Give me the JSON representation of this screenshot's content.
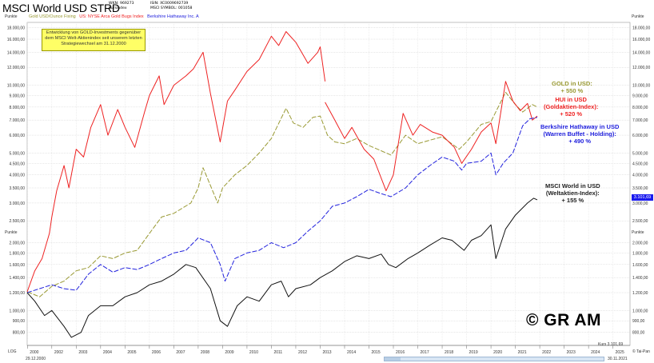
{
  "header": {
    "title": "MSCI World USD STRD",
    "wkn_label": "WKN:",
    "wkn": "969273",
    "isin_label": "ISIN:",
    "isin": "XC0009692739",
    "kursindex": "Kursindex",
    "msci": "MSCI",
    "symbol_label": "SYMBOL:",
    "symbol": "001058"
  },
  "legend": [
    {
      "label": "Gold USD/Ounce Fixing",
      "color": "#999933"
    },
    {
      "label": "US: NYSE Arca Gold Bugs Index",
      "color": "#ee2222"
    },
    {
      "label": "Berkshire Hathaway Inc. A",
      "color": "#2222dd"
    }
  ],
  "note": "Entwicklung von GOLD-Investments gegenüber dem MSCI Welt-Aktienindex seit unserem letzten Strategiewechsel am 31.12.2000",
  "annotations": {
    "gold": [
      "GOLD in USD:",
      "+ 550 %"
    ],
    "hui": [
      "HUI in USD",
      "(Goldaktien-Index):",
      "+ 520 %"
    ],
    "brk": [
      "Berkshire Hathaway in USD",
      "(Warren Buffet - Holding):",
      "+ 490 %"
    ],
    "msci": [
      "MSCI World in USD",
      "(Weltaktien-Index):",
      "+ 155 %"
    ]
  },
  "watermark": "© GR AM",
  "price_tag": "3.101,69",
  "kurs_text": "Kurs 3.101,69",
  "axis": {
    "unit_label": "Punkte",
    "log_label": "LOG",
    "footer_right": "© Tai-Pan",
    "date_start": "29.12.2000",
    "date_end": "30.11.2021"
  },
  "chart_data": {
    "type": "line",
    "scale": "log",
    "ylim": [
      700,
      19000
    ],
    "y_ticks": [
      800,
      900,
      1000,
      1200,
      1400,
      1600,
      1800,
      2000,
      2500,
      3000,
      3500,
      4000,
      4500,
      5000,
      6000,
      7000,
      8000,
      9000,
      10000,
      12000,
      14000,
      16000,
      18000
    ],
    "y_tick_labels": [
      "800,00",
      "900,00",
      "1.000,00",
      "1.200,00",
      "1.400,00",
      "1.600,00",
      "1.800,00",
      "2.000,00",
      "2.500,00",
      "3.000,00",
      "3.500,00",
      "4.000,00",
      "4.500,00",
      "5.000,00",
      "6.000,00",
      "7.000,00",
      "8.000,00",
      "9.000,00",
      "10.000,00",
      "12.000,00",
      "14.000,00",
      "16.000,00",
      "18.000,00"
    ],
    "xlim": [
      2000.99,
      2025.7
    ],
    "x_tick_labels": [
      "2000",
      "2002",
      "2003",
      "2004",
      "2005",
      "2006",
      "2007",
      "2008",
      "2009",
      "2010",
      "2011",
      "2012",
      "2013",
      "2014",
      "2015",
      "2016",
      "2017",
      "2018",
      "2019",
      "2020",
      "2021",
      "2022",
      "2023",
      "2024",
      "2025"
    ],
    "series": [
      {
        "name": "Gold USD/Ounce Fixing",
        "color": "#999933",
        "style": "dashed",
        "points": [
          [
            2001.0,
            1210
          ],
          [
            2001.5,
            1150
          ],
          [
            2002.0,
            1280
          ],
          [
            2002.5,
            1350
          ],
          [
            2003.0,
            1500
          ],
          [
            2003.5,
            1550
          ],
          [
            2004.0,
            1750
          ],
          [
            2004.5,
            1700
          ],
          [
            2005.0,
            1800
          ],
          [
            2005.5,
            1850
          ],
          [
            2006.0,
            2200
          ],
          [
            2006.5,
            2600
          ],
          [
            2007.0,
            2700
          ],
          [
            2007.7,
            3000
          ],
          [
            2008.0,
            3500
          ],
          [
            2008.2,
            4300
          ],
          [
            2008.8,
            3000
          ],
          [
            2009.0,
            3500
          ],
          [
            2009.5,
            4000
          ],
          [
            2010.0,
            4400
          ],
          [
            2010.5,
            5000
          ],
          [
            2011.0,
            5800
          ],
          [
            2011.6,
            7900
          ],
          [
            2011.9,
            6800
          ],
          [
            2012.3,
            6500
          ],
          [
            2012.7,
            7200
          ],
          [
            2013.0,
            7300
          ],
          [
            2013.3,
            6000
          ],
          [
            2013.6,
            5600
          ],
          [
            2014.0,
            5500
          ],
          [
            2014.5,
            5800
          ],
          [
            2015.0,
            5400
          ],
          [
            2015.9,
            4900
          ],
          [
            2016.5,
            6000
          ],
          [
            2017.0,
            5500
          ],
          [
            2017.5,
            5700
          ],
          [
            2018.0,
            5900
          ],
          [
            2018.7,
            5200
          ],
          [
            2019.0,
            5600
          ],
          [
            2019.6,
            6700
          ],
          [
            2020.0,
            6900
          ],
          [
            2020.6,
            9300
          ],
          [
            2021.0,
            8200
          ],
          [
            2021.3,
            7600
          ],
          [
            2021.7,
            8200
          ],
          [
            2021.9,
            8000
          ]
        ]
      },
      {
        "name": "US: NYSE Arca Gold Bugs Index",
        "color": "#ee2222",
        "style": "solid",
        "points": [
          [
            2000.99,
            1210
          ],
          [
            2001.3,
            1500
          ],
          [
            2001.6,
            1700
          ],
          [
            2001.9,
            2200
          ],
          [
            2002.0,
            2600
          ],
          [
            2002.2,
            3400
          ],
          [
            2002.5,
            4400
          ],
          [
            2002.7,
            3500
          ],
          [
            2003.0,
            5200
          ],
          [
            2003.3,
            4800
          ],
          [
            2003.6,
            6500
          ],
          [
            2004.0,
            8200
          ],
          [
            2004.3,
            6000
          ],
          [
            2004.7,
            7800
          ],
          [
            2005.0,
            6500
          ],
          [
            2005.4,
            5300
          ],
          [
            2005.8,
            7600
          ],
          [
            2006.0,
            9000
          ],
          [
            2006.4,
            11000
          ],
          [
            2006.6,
            8200
          ],
          [
            2007.0,
            10000
          ],
          [
            2007.5,
            11000
          ],
          [
            2007.8,
            11800
          ],
          [
            2008.2,
            14000
          ],
          [
            2008.5,
            9200
          ],
          [
            2008.9,
            5600
          ],
          [
            2009.2,
            8500
          ],
          [
            2009.5,
            9500
          ],
          [
            2010.0,
            11500
          ],
          [
            2010.5,
            13000
          ],
          [
            2011.0,
            16500
          ],
          [
            2011.3,
            15000
          ],
          [
            2011.6,
            17300
          ],
          [
            2012.0,
            15500
          ],
          [
            2012.5,
            12500
          ],
          [
            2012.9,
            14000
          ],
          [
            2013.0,
            14800
          ],
          [
            2013.2,
            10400
          ]
        ]
      },
      {
        "name": "US: NYSE Arca Gold Bugs Index (2013–2021)",
        "color": "#ee2222",
        "style": "solid",
        "points": [
          [
            2013.2,
            8400
          ],
          [
            2013.6,
            7000
          ],
          [
            2014.0,
            5800
          ],
          [
            2014.3,
            6500
          ],
          [
            2014.8,
            5200
          ],
          [
            2015.2,
            4700
          ],
          [
            2015.7,
            3400
          ],
          [
            2016.0,
            4000
          ],
          [
            2016.4,
            7500
          ],
          [
            2016.8,
            6000
          ],
          [
            2017.1,
            6700
          ],
          [
            2017.6,
            6200
          ],
          [
            2018.0,
            6000
          ],
          [
            2018.5,
            5300
          ],
          [
            2018.8,
            4500
          ],
          [
            2019.2,
            5200
          ],
          [
            2019.6,
            6200
          ],
          [
            2020.0,
            6800
          ],
          [
            2020.2,
            5500
          ],
          [
            2020.6,
            10400
          ],
          [
            2020.9,
            8500
          ],
          [
            2021.2,
            7700
          ],
          [
            2021.5,
            8300
          ],
          [
            2021.7,
            7000
          ],
          [
            2021.9,
            7300
          ]
        ]
      },
      {
        "name": "Berkshire Hathaway Inc. A",
        "color": "#2222dd",
        "style": "dashed",
        "points": [
          [
            2000.99,
            1200
          ],
          [
            2001.5,
            1250
          ],
          [
            2002.0,
            1300
          ],
          [
            2002.5,
            1250
          ],
          [
            2003.0,
            1230
          ],
          [
            2003.5,
            1450
          ],
          [
            2004.0,
            1600
          ],
          [
            2004.5,
            1480
          ],
          [
            2005.0,
            1550
          ],
          [
            2005.5,
            1520
          ],
          [
            2006.0,
            1600
          ],
          [
            2006.5,
            1700
          ],
          [
            2007.0,
            1800
          ],
          [
            2007.5,
            1850
          ],
          [
            2008.0,
            2100
          ],
          [
            2008.5,
            2000
          ],
          [
            2008.9,
            1600
          ],
          [
            2009.1,
            1350
          ],
          [
            2009.5,
            1700
          ],
          [
            2010.0,
            1800
          ],
          [
            2010.5,
            1850
          ],
          [
            2011.0,
            2000
          ],
          [
            2011.5,
            1900
          ],
          [
            2012.0,
            2000
          ],
          [
            2012.5,
            2250
          ],
          [
            2013.0,
            2500
          ],
          [
            2013.5,
            2900
          ],
          [
            2014.0,
            3000
          ],
          [
            2014.5,
            3200
          ],
          [
            2015.0,
            3450
          ],
          [
            2015.5,
            3300
          ],
          [
            2015.9,
            3200
          ],
          [
            2016.5,
            3500
          ],
          [
            2017.0,
            4000
          ],
          [
            2017.5,
            4400
          ],
          [
            2018.0,
            4800
          ],
          [
            2018.5,
            4600
          ],
          [
            2018.8,
            4200
          ],
          [
            2019.0,
            4500
          ],
          [
            2019.6,
            4600
          ],
          [
            2020.0,
            5000
          ],
          [
            2020.2,
            4000
          ],
          [
            2020.5,
            4500
          ],
          [
            2020.9,
            5000
          ],
          [
            2021.3,
            6600
          ],
          [
            2021.6,
            7100
          ],
          [
            2021.9,
            7200
          ]
        ]
      },
      {
        "name": "MSCI World USD STRD",
        "color": "#111111",
        "style": "solid",
        "points": [
          [
            2000.99,
            1200
          ],
          [
            2001.3,
            1100
          ],
          [
            2001.7,
            950
          ],
          [
            2002.0,
            1000
          ],
          [
            2002.5,
            850
          ],
          [
            2002.8,
            760
          ],
          [
            2003.2,
            800
          ],
          [
            2003.5,
            950
          ],
          [
            2004.0,
            1050
          ],
          [
            2004.5,
            1050
          ],
          [
            2005.0,
            1150
          ],
          [
            2005.5,
            1200
          ],
          [
            2006.0,
            1300
          ],
          [
            2006.5,
            1350
          ],
          [
            2007.0,
            1450
          ],
          [
            2007.5,
            1600
          ],
          [
            2007.9,
            1550
          ],
          [
            2008.5,
            1250
          ],
          [
            2008.9,
            900
          ],
          [
            2009.2,
            850
          ],
          [
            2009.6,
            1050
          ],
          [
            2010.0,
            1150
          ],
          [
            2010.5,
            1100
          ],
          [
            2011.0,
            1300
          ],
          [
            2011.4,
            1350
          ],
          [
            2011.7,
            1150
          ],
          [
            2012.0,
            1250
          ],
          [
            2012.6,
            1300
          ],
          [
            2013.0,
            1400
          ],
          [
            2013.5,
            1500
          ],
          [
            2014.0,
            1650
          ],
          [
            2014.5,
            1750
          ],
          [
            2015.0,
            1700
          ],
          [
            2015.5,
            1780
          ],
          [
            2015.8,
            1600
          ],
          [
            2016.1,
            1550
          ],
          [
            2016.6,
            1700
          ],
          [
            2017.0,
            1800
          ],
          [
            2017.5,
            1950
          ],
          [
            2018.0,
            2100
          ],
          [
            2018.4,
            2050
          ],
          [
            2018.9,
            1850
          ],
          [
            2019.2,
            2050
          ],
          [
            2019.6,
            2150
          ],
          [
            2020.0,
            2400
          ],
          [
            2020.2,
            1700
          ],
          [
            2020.6,
            2300
          ],
          [
            2021.0,
            2650
          ],
          [
            2021.5,
            3000
          ],
          [
            2021.75,
            3150
          ],
          [
            2021.9,
            3100
          ]
        ]
      }
    ]
  }
}
